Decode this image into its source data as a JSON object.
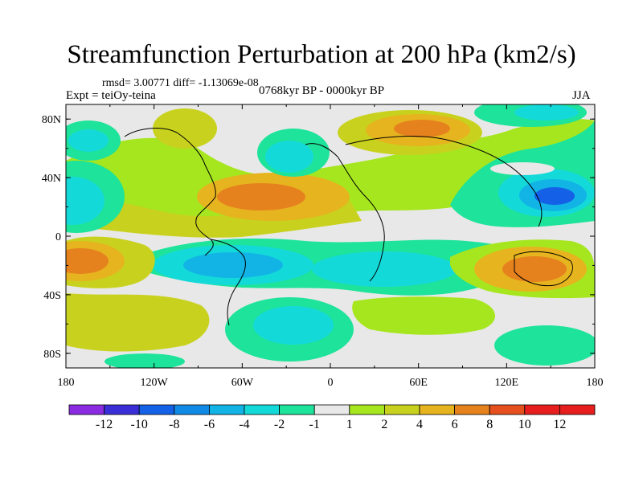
{
  "title": "Streamfunction Perturbation at 200 hPa (km2/s)",
  "stats_text": "rmsd= 3.00771 diff= -1.13069e-08",
  "experiment_label": "Expt = teiOy-teina",
  "period_label": "0768kyr BP - 0000kyr BP",
  "season_label": "JJA",
  "map": {
    "projection": "cylindrical-equidistant",
    "lon_range": [
      -180,
      180
    ],
    "lat_range": [
      -90,
      90
    ],
    "lat_ticks": [
      {
        "value": 80,
        "label": "80N"
      },
      {
        "value": 40,
        "label": "40N"
      },
      {
        "value": 0,
        "label": "0"
      },
      {
        "value": -40,
        "label": "40S"
      },
      {
        "value": -80,
        "label": "80S"
      }
    ],
    "lon_ticks": [
      {
        "value": -180,
        "label": "180"
      },
      {
        "value": -120,
        "label": "120W"
      },
      {
        "value": -60,
        "label": "60W"
      },
      {
        "value": 0,
        "label": "0"
      },
      {
        "value": 60,
        "label": "60E"
      },
      {
        "value": 120,
        "label": "120E"
      },
      {
        "value": 180,
        "label": "180"
      }
    ],
    "anomalies": [
      {
        "name": "north-atlantic-positive",
        "lon": -35,
        "lat": 33,
        "value": 7
      },
      {
        "name": "siberia-positive",
        "lon": 65,
        "lat": 78,
        "value": 6
      },
      {
        "name": "central-asia-negative",
        "lon": 162,
        "lat": 29,
        "value": -7
      },
      {
        "name": "south-atlantic-negative",
        "lon": -65,
        "lat": -18,
        "value": -6
      },
      {
        "name": "south-pacific-positive",
        "lon": -170,
        "lat": -16,
        "value": 7
      },
      {
        "name": "australia-positive",
        "lon": 148,
        "lat": -20,
        "value": 7
      },
      {
        "name": "south-indian-negative",
        "lon": 45,
        "lat": -25,
        "value": -4
      },
      {
        "name": "north-pacific-negative",
        "lon": -165,
        "lat": 35,
        "value": -4
      },
      {
        "name": "southern-ocean-negative",
        "lon": -35,
        "lat": -68,
        "value": -3
      },
      {
        "name": "arctic-negative",
        "lon": -25,
        "lat": 68,
        "value": -3
      }
    ]
  },
  "colorbar": {
    "labels": [
      "-12",
      "-10",
      "-8",
      "-6",
      "-4",
      "-2",
      "-1",
      "1",
      "2",
      "4",
      "6",
      "8",
      "10",
      "12"
    ],
    "colors": [
      "#8a2be2",
      "#3a2fd6",
      "#1460e6",
      "#118ae6",
      "#12b4e6",
      "#14d9d9",
      "#1ee39a",
      "#e8e8e8",
      "#a6e61e",
      "#c8d21e",
      "#e6b41e",
      "#e6821e",
      "#e6501e",
      "#e61e1e",
      "#e61e1e"
    ]
  }
}
